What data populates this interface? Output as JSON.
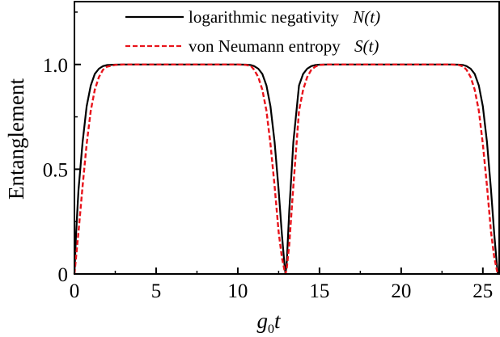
{
  "chart_data": {
    "type": "line",
    "xlabel": {
      "main": "g",
      "sub": "0",
      "tail": "t"
    },
    "ylabel": "Entanglement",
    "xlim": [
      0,
      26
    ],
    "ylim": [
      0,
      1.3
    ],
    "x_ticks": [
      {
        "value": 0,
        "label": "0"
      },
      {
        "value": 5,
        "label": "5"
      },
      {
        "value": 10,
        "label": "10"
      },
      {
        "value": 15,
        "label": "15"
      },
      {
        "value": 20,
        "label": "20"
      },
      {
        "value": 25,
        "label": "25"
      }
    ],
    "y_ticks": [
      {
        "value": 0,
        "label": "0"
      },
      {
        "value": 0.5,
        "label": "0.5"
      },
      {
        "value": 1.0,
        "label": "1.0"
      }
    ],
    "legend_position": "top",
    "series": [
      {
        "name": "logarithmic negativity",
        "symbol": "N(t)",
        "color": "#000000",
        "style": "solid",
        "x": [
          0,
          0.1,
          0.25,
          0.5,
          0.75,
          1,
          1.25,
          1.5,
          1.75,
          2,
          2.5,
          3,
          4,
          5,
          6,
          7,
          8,
          9,
          10,
          10.5,
          10.8,
          11,
          11.25,
          11.5,
          11.75,
          12,
          12.25,
          12.5,
          12.7,
          12.85,
          12.92,
          13,
          13.15,
          13.4,
          13.75,
          14,
          14.25,
          14.5,
          14.75,
          15,
          15.5,
          16,
          17,
          18,
          19,
          20,
          21,
          22,
          23,
          23.5,
          23.8,
          24,
          24.25,
          24.5,
          24.75,
          25,
          25.25,
          25.5,
          25.7,
          25.85,
          25.92
        ],
        "y": [
          0,
          0.19,
          0.4,
          0.63,
          0.8,
          0.9,
          0.955,
          0.98,
          0.992,
          0.997,
          0.999,
          1,
          1,
          1,
          1,
          1,
          1,
          1,
          1,
          0.999,
          0.997,
          0.992,
          0.98,
          0.955,
          0.9,
          0.8,
          0.63,
          0.4,
          0.19,
          0.05,
          0,
          0.06,
          0.3,
          0.63,
          0.9,
          0.955,
          0.98,
          0.992,
          0.997,
          0.999,
          1,
          1,
          1,
          1,
          1,
          1,
          1,
          1,
          1,
          0.999,
          0.997,
          0.992,
          0.98,
          0.955,
          0.9,
          0.8,
          0.63,
          0.4,
          0.19,
          0.05,
          0
        ]
      },
      {
        "name": "von Neumann entropy",
        "symbol": "S(t)",
        "color": "#e8141c",
        "style": "dashed",
        "x": [
          0,
          0.1,
          0.25,
          0.5,
          0.75,
          1,
          1.25,
          1.5,
          1.75,
          2,
          2.5,
          3,
          4,
          5,
          6,
          7,
          8,
          9,
          10,
          10.5,
          10.8,
          11,
          11.25,
          11.5,
          11.75,
          12,
          12.25,
          12.5,
          12.7,
          12.85,
          12.92,
          13,
          13.15,
          13.4,
          13.75,
          14,
          14.25,
          14.5,
          14.75,
          15,
          15.5,
          16,
          17,
          18,
          19,
          20,
          21,
          22,
          23,
          23.5,
          23.8,
          24,
          24.25,
          24.5,
          24.75,
          25,
          25.25,
          25.5,
          25.7,
          25.85,
          25.92
        ],
        "y": [
          0,
          0.08,
          0.2,
          0.42,
          0.62,
          0.78,
          0.88,
          0.94,
          0.975,
          0.99,
          0.998,
          1,
          1,
          1,
          1,
          1,
          1,
          1,
          1,
          0.998,
          0.993,
          0.975,
          0.94,
          0.88,
          0.78,
          0.62,
          0.42,
          0.2,
          0.08,
          0.02,
          0,
          0.03,
          0.14,
          0.42,
          0.78,
          0.88,
          0.94,
          0.975,
          0.99,
          0.998,
          1,
          1,
          1,
          1,
          1,
          1,
          1,
          1,
          1,
          0.998,
          0.99,
          0.975,
          0.94,
          0.88,
          0.78,
          0.62,
          0.42,
          0.2,
          0.08,
          0.02,
          0
        ]
      }
    ]
  }
}
